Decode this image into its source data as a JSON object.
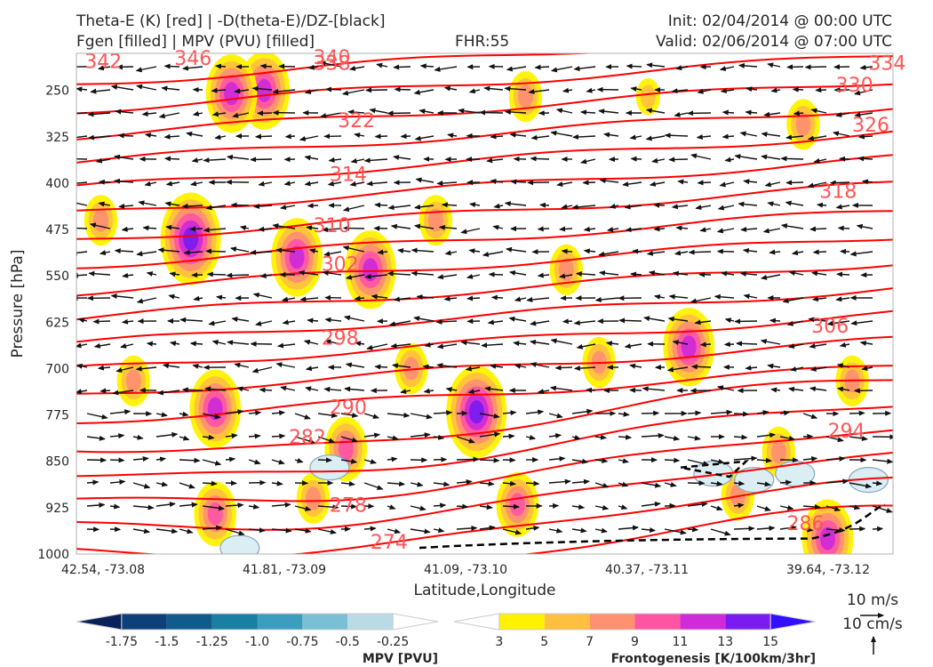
{
  "header": {
    "title_left_1": "Theta-E (K) [red] | -D(theta-E)/DZ-[black]",
    "title_left_2": "Fgen [filled] | MPV (PVU) [filled]",
    "fhr": "FHR:55",
    "init": "Init: 02/04/2014 @ 00:00 UTC",
    "valid": "Valid: 02/06/2014 @ 07:00 UTC"
  },
  "chart_data": {
    "type": "cross-section",
    "xlabel": "Latitude,Longitude",
    "ylabel": "Pressure [hPa]",
    "x_ticks": [
      "42.54, -73.08",
      "41.81, -73.09",
      "41.09, -73.10",
      "40.37, -73.11",
      "39.64, -73.12"
    ],
    "y_ticks": [
      250,
      325,
      400,
      475,
      550,
      625,
      700,
      775,
      850,
      925,
      1000
    ],
    "ylim": [
      1000,
      190
    ],
    "theta_e": {
      "color": "#ff0000",
      "labels": [
        {
          "text": "342",
          "x": 0.01,
          "p": 202
        },
        {
          "text": "346",
          "x": 0.12,
          "p": 197
        },
        {
          "text": "340",
          "x": 0.29,
          "p": 196
        },
        {
          "text": "338",
          "x": 0.29,
          "p": 205
        },
        {
          "text": "334",
          "x": 0.97,
          "p": 205
        },
        {
          "text": "330",
          "x": 0.93,
          "p": 240
        },
        {
          "text": "326",
          "x": 0.95,
          "p": 305
        },
        {
          "text": "322",
          "x": 0.32,
          "p": 298
        },
        {
          "text": "318",
          "x": 0.91,
          "p": 412
        },
        {
          "text": "314",
          "x": 0.31,
          "p": 385
        },
        {
          "text": "310",
          "x": 0.29,
          "p": 468
        },
        {
          "text": "306",
          "x": 0.9,
          "p": 630
        },
        {
          "text": "302",
          "x": 0.3,
          "p": 530
        },
        {
          "text": "298",
          "x": 0.3,
          "p": 650
        },
        {
          "text": "294",
          "x": 0.92,
          "p": 800
        },
        {
          "text": "290",
          "x": 0.31,
          "p": 762
        },
        {
          "text": "286",
          "x": 0.87,
          "p": 950
        },
        {
          "text": "282",
          "x": 0.26,
          "p": 810
        },
        {
          "text": "278",
          "x": 0.31,
          "p": 920
        },
        {
          "text": "274",
          "x": 0.36,
          "p": 980
        }
      ]
    },
    "mpv_colorbar": {
      "label": "MPV [PVU]",
      "ticks": [
        "-1.75",
        "-1.5",
        "-1.25",
        "-1.0",
        "-0.75",
        "-0.5",
        "-0.25"
      ],
      "colors": [
        "#08215a",
        "#0d3f78",
        "#0f5c8c",
        "#1a7fa3",
        "#3d9dbf",
        "#7bbfd4",
        "#b9dbe6",
        "#ffffff"
      ]
    },
    "fgen_colorbar": {
      "label": "Frontogenesis [K/100km/3hr]",
      "ticks": [
        "3",
        "5",
        "7",
        "9",
        "11",
        "13",
        "15"
      ],
      "colors": [
        "#ffffff",
        "#fff200",
        "#ffc03f",
        "#ff9070",
        "#ff55a3",
        "#d02bd8",
        "#7a1cf0",
        "#3010ff"
      ]
    },
    "wind_key": {
      "horizontal": "10 m/s",
      "vertical": "10 cm/s"
    }
  }
}
